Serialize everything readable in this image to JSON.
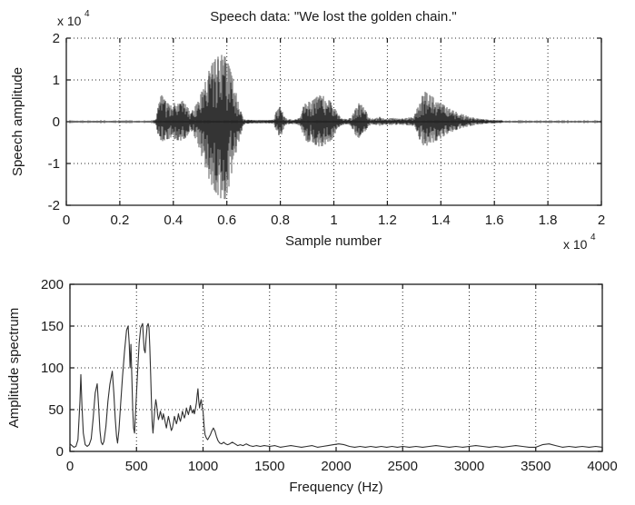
{
  "figure": {
    "background": "#ffffff",
    "axis_color": "#1a1a1a",
    "grid_color": "#2a2a2a",
    "waveform_fill_color": "#8c8c8c",
    "waveform_stroke_color": "#1f1f1f",
    "spectrum_line_color": "#303030"
  },
  "chart_data": [
    {
      "type": "line",
      "id": "speech-waveform",
      "title": "Speech data: \"We lost the golden chain.\"",
      "xlabel": "Sample number",
      "ylabel": "Speech amplitude",
      "x_scale_base": "x 10",
      "x_scale_exp": "4",
      "y_scale_base": "x 10",
      "y_scale_exp": "4",
      "xlim": [
        0,
        20000
      ],
      "ylim": [
        -20000,
        20000
      ],
      "grid": true,
      "legend": "none",
      "xticks": [
        "0",
        "0.2",
        "0.4",
        "0.6",
        "0.8",
        "1",
        "1.2",
        "1.4",
        "1.6",
        "1.8",
        "2"
      ],
      "yticks": [
        "-2",
        "-1",
        "0",
        "1",
        "2"
      ],
      "envelope_units": "breakpoints [sample_x1e4, pos_amp_x1e4, neg_amp_x1e4] of speech envelope",
      "envelope": [
        [
          0,
          0.02,
          0.02
        ],
        [
          0.32,
          0.025,
          0.025
        ],
        [
          0.335,
          0.06,
          0.06
        ],
        [
          0.345,
          0.4,
          0.35
        ],
        [
          0.355,
          0.65,
          0.5
        ],
        [
          0.365,
          0.55,
          0.45
        ],
        [
          0.375,
          0.45,
          0.42
        ],
        [
          0.39,
          0.42,
          0.4
        ],
        [
          0.405,
          0.45,
          0.42
        ],
        [
          0.42,
          0.44,
          0.45
        ],
        [
          0.435,
          0.5,
          0.45
        ],
        [
          0.45,
          0.38,
          0.35
        ],
        [
          0.465,
          0.22,
          0.2
        ],
        [
          0.475,
          0.3,
          0.3
        ],
        [
          0.49,
          0.45,
          0.5
        ],
        [
          0.505,
          0.7,
          0.8
        ],
        [
          0.52,
          1.0,
          1.1
        ],
        [
          0.535,
          1.25,
          1.4
        ],
        [
          0.55,
          1.45,
          1.6
        ],
        [
          0.565,
          1.55,
          1.75
        ],
        [
          0.58,
          1.6,
          1.85
        ],
        [
          0.595,
          1.55,
          1.85
        ],
        [
          0.61,
          1.3,
          1.5
        ],
        [
          0.625,
          0.95,
          1.0
        ],
        [
          0.64,
          0.55,
          0.6
        ],
        [
          0.652,
          0.25,
          0.3
        ],
        [
          0.66,
          0.1,
          0.1
        ],
        [
          0.67,
          0.05,
          0.05
        ],
        [
          0.7,
          0.04,
          0.04
        ],
        [
          0.75,
          0.04,
          0.04
        ],
        [
          0.775,
          0.05,
          0.05
        ],
        [
          0.785,
          0.25,
          0.2
        ],
        [
          0.795,
          0.38,
          0.35
        ],
        [
          0.805,
          0.3,
          0.3
        ],
        [
          0.815,
          0.12,
          0.12
        ],
        [
          0.825,
          0.06,
          0.06
        ],
        [
          0.86,
          0.06,
          0.06
        ],
        [
          0.875,
          0.1,
          0.1
        ],
        [
          0.885,
          0.35,
          0.3
        ],
        [
          0.9,
          0.55,
          0.5
        ],
        [
          0.915,
          0.48,
          0.45
        ],
        [
          0.93,
          0.55,
          0.55
        ],
        [
          0.945,
          0.65,
          0.6
        ],
        [
          0.96,
          0.62,
          0.58
        ],
        [
          0.975,
          0.55,
          0.52
        ],
        [
          0.99,
          0.48,
          0.45
        ],
        [
          1.005,
          0.3,
          0.28
        ],
        [
          1.02,
          0.15,
          0.15
        ],
        [
          1.03,
          0.08,
          0.08
        ],
        [
          1.05,
          0.06,
          0.06
        ],
        [
          1.065,
          0.1,
          0.1
        ],
        [
          1.075,
          0.3,
          0.25
        ],
        [
          1.09,
          0.45,
          0.4
        ],
        [
          1.105,
          0.4,
          0.35
        ],
        [
          1.12,
          0.25,
          0.2
        ],
        [
          1.13,
          0.1,
          0.1
        ],
        [
          1.15,
          0.07,
          0.07
        ],
        [
          1.17,
          0.12,
          0.1
        ],
        [
          1.19,
          0.07,
          0.07
        ],
        [
          1.22,
          0.09,
          0.08
        ],
        [
          1.25,
          0.07,
          0.07
        ],
        [
          1.28,
          0.1,
          0.09
        ],
        [
          1.3,
          0.12,
          0.1
        ],
        [
          1.31,
          0.3,
          0.25
        ],
        [
          1.325,
          0.55,
          0.5
        ],
        [
          1.34,
          0.72,
          0.6
        ],
        [
          1.355,
          0.65,
          0.55
        ],
        [
          1.37,
          0.6,
          0.5
        ],
        [
          1.385,
          0.52,
          0.45
        ],
        [
          1.4,
          0.45,
          0.4
        ],
        [
          1.42,
          0.36,
          0.3
        ],
        [
          1.44,
          0.28,
          0.25
        ],
        [
          1.465,
          0.22,
          0.18
        ],
        [
          1.49,
          0.16,
          0.13
        ],
        [
          1.515,
          0.11,
          0.1
        ],
        [
          1.545,
          0.07,
          0.06
        ],
        [
          1.58,
          0.05,
          0.04
        ],
        [
          1.65,
          0.03,
          0.03
        ],
        [
          1.8,
          0.025,
          0.025
        ],
        [
          2.0,
          0.02,
          0.02
        ]
      ]
    },
    {
      "type": "line",
      "id": "amplitude-spectrum",
      "title": "",
      "xlabel": "Frequency (Hz)",
      "ylabel": "Amplitude spectrum",
      "xlim": [
        0,
        4000
      ],
      "ylim": [
        0,
        200
      ],
      "grid": true,
      "legend": "none",
      "xticks": [
        "0",
        "500",
        "1000",
        "1500",
        "2000",
        "2500",
        "3000",
        "3500",
        "4000"
      ],
      "yticks": [
        "0",
        "50",
        "100",
        "150",
        "200"
      ],
      "points": [
        [
          0,
          9
        ],
        [
          15,
          7
        ],
        [
          30,
          5
        ],
        [
          45,
          6
        ],
        [
          60,
          14
        ],
        [
          75,
          60
        ],
        [
          82,
          92
        ],
        [
          90,
          55
        ],
        [
          100,
          22
        ],
        [
          115,
          8
        ],
        [
          130,
          6
        ],
        [
          145,
          8
        ],
        [
          160,
          15
        ],
        [
          175,
          40
        ],
        [
          190,
          70
        ],
        [
          205,
          81
        ],
        [
          215,
          55
        ],
        [
          225,
          25
        ],
        [
          235,
          11
        ],
        [
          245,
          8
        ],
        [
          255,
          12
        ],
        [
          270,
          30
        ],
        [
          285,
          60
        ],
        [
          300,
          80
        ],
        [
          318,
          96
        ],
        [
          330,
          70
        ],
        [
          340,
          40
        ],
        [
          350,
          18
        ],
        [
          358,
          10
        ],
        [
          368,
          25
        ],
        [
          380,
          55
        ],
        [
          395,
          90
        ],
        [
          410,
          120
        ],
        [
          425,
          145
        ],
        [
          437,
          150
        ],
        [
          445,
          130
        ],
        [
          452,
          100
        ],
        [
          458,
          128
        ],
        [
          465,
          90
        ],
        [
          472,
          50
        ],
        [
          478,
          28
        ],
        [
          485,
          22
        ],
        [
          492,
          45
        ],
        [
          500,
          70
        ],
        [
          510,
          100
        ],
        [
          520,
          130
        ],
        [
          532,
          148
        ],
        [
          546,
          153
        ],
        [
          552,
          135
        ],
        [
          558,
          122
        ],
        [
          565,
          118
        ],
        [
          572,
          135
        ],
        [
          580,
          150
        ],
        [
          588,
          153
        ],
        [
          594,
          148
        ],
        [
          600,
          125
        ],
        [
          607,
          90
        ],
        [
          612,
          60
        ],
        [
          618,
          35
        ],
        [
          624,
          22
        ],
        [
          630,
          35
        ],
        [
          638,
          52
        ],
        [
          645,
          62
        ],
        [
          652,
          55
        ],
        [
          658,
          45
        ],
        [
          665,
          38
        ],
        [
          672,
          42
        ],
        [
          680,
          48
        ],
        [
          688,
          42
        ],
        [
          695,
          38
        ],
        [
          702,
          45
        ],
        [
          710,
          40
        ],
        [
          718,
          33
        ],
        [
          725,
          28
        ],
        [
          732,
          35
        ],
        [
          740,
          42
        ],
        [
          748,
          36
        ],
        [
          755,
          30
        ],
        [
          762,
          25
        ],
        [
          770,
          28
        ],
        [
          778,
          35
        ],
        [
          785,
          42
        ],
        [
          792,
          38
        ],
        [
          800,
          33
        ],
        [
          808,
          38
        ],
        [
          815,
          45
        ],
        [
          822,
          40
        ],
        [
          830,
          36
        ],
        [
          838,
          42
        ],
        [
          845,
          48
        ],
        [
          852,
          44
        ],
        [
          860,
          40
        ],
        [
          868,
          45
        ],
        [
          875,
          52
        ],
        [
          882,
          48
        ],
        [
          890,
          44
        ],
        [
          898,
          50
        ],
        [
          905,
          55
        ],
        [
          912,
          50
        ],
        [
          920,
          46
        ],
        [
          928,
          50
        ],
        [
          935,
          45
        ],
        [
          942,
          50
        ],
        [
          950,
          58
        ],
        [
          956,
          68
        ],
        [
          962,
          75
        ],
        [
          968,
          60
        ],
        [
          974,
          52
        ],
        [
          980,
          58
        ],
        [
          986,
          62
        ],
        [
          992,
          55
        ],
        [
          1000,
          48
        ],
        [
          1008,
          30
        ],
        [
          1015,
          20
        ],
        [
          1025,
          16
        ],
        [
          1035,
          14
        ],
        [
          1045,
          17
        ],
        [
          1055,
          20
        ],
        [
          1065,
          24
        ],
        [
          1078,
          28
        ],
        [
          1090,
          24
        ],
        [
          1100,
          18
        ],
        [
          1112,
          13
        ],
        [
          1125,
          10
        ],
        [
          1140,
          9
        ],
        [
          1155,
          11
        ],
        [
          1170,
          9
        ],
        [
          1185,
          8
        ],
        [
          1200,
          9
        ],
        [
          1220,
          11
        ],
        [
          1240,
          9
        ],
        [
          1260,
          7
        ],
        [
          1280,
          8
        ],
        [
          1300,
          7
        ],
        [
          1325,
          9
        ],
        [
          1350,
          7
        ],
        [
          1375,
          6
        ],
        [
          1400,
          7
        ],
        [
          1430,
          6
        ],
        [
          1460,
          7
        ],
        [
          1500,
          6
        ],
        [
          1540,
          7
        ],
        [
          1580,
          5
        ],
        [
          1620,
          6
        ],
        [
          1660,
          7
        ],
        [
          1700,
          6
        ],
        [
          1740,
          5
        ],
        [
          1780,
          6
        ],
        [
          1820,
          7
        ],
        [
          1860,
          5
        ],
        [
          1900,
          6
        ],
        [
          1940,
          7
        ],
        [
          1980,
          8
        ],
        [
          2020,
          9
        ],
        [
          2060,
          8
        ],
        [
          2100,
          6
        ],
        [
          2140,
          5
        ],
        [
          2180,
          6
        ],
        [
          2220,
          5
        ],
        [
          2260,
          6
        ],
        [
          2300,
          5
        ],
        [
          2340,
          6
        ],
        [
          2380,
          5
        ],
        [
          2420,
          6
        ],
        [
          2460,
          5
        ],
        [
          2500,
          6
        ],
        [
          2550,
          5
        ],
        [
          2600,
          6
        ],
        [
          2650,
          5
        ],
        [
          2700,
          6
        ],
        [
          2750,
          7
        ],
        [
          2800,
          6
        ],
        [
          2850,
          5
        ],
        [
          2900,
          6
        ],
        [
          2950,
          5
        ],
        [
          3000,
          6
        ],
        [
          3050,
          7
        ],
        [
          3100,
          6
        ],
        [
          3150,
          5
        ],
        [
          3200,
          6
        ],
        [
          3250,
          5
        ],
        [
          3300,
          6
        ],
        [
          3350,
          7
        ],
        [
          3400,
          6
        ],
        [
          3450,
          5
        ],
        [
          3500,
          5
        ],
        [
          3550,
          8
        ],
        [
          3600,
          9
        ],
        [
          3650,
          7
        ],
        [
          3700,
          5
        ],
        [
          3750,
          6
        ],
        [
          3800,
          5
        ],
        [
          3850,
          6
        ],
        [
          3900,
          5
        ],
        [
          3950,
          6
        ],
        [
          4000,
          5
        ]
      ]
    }
  ]
}
